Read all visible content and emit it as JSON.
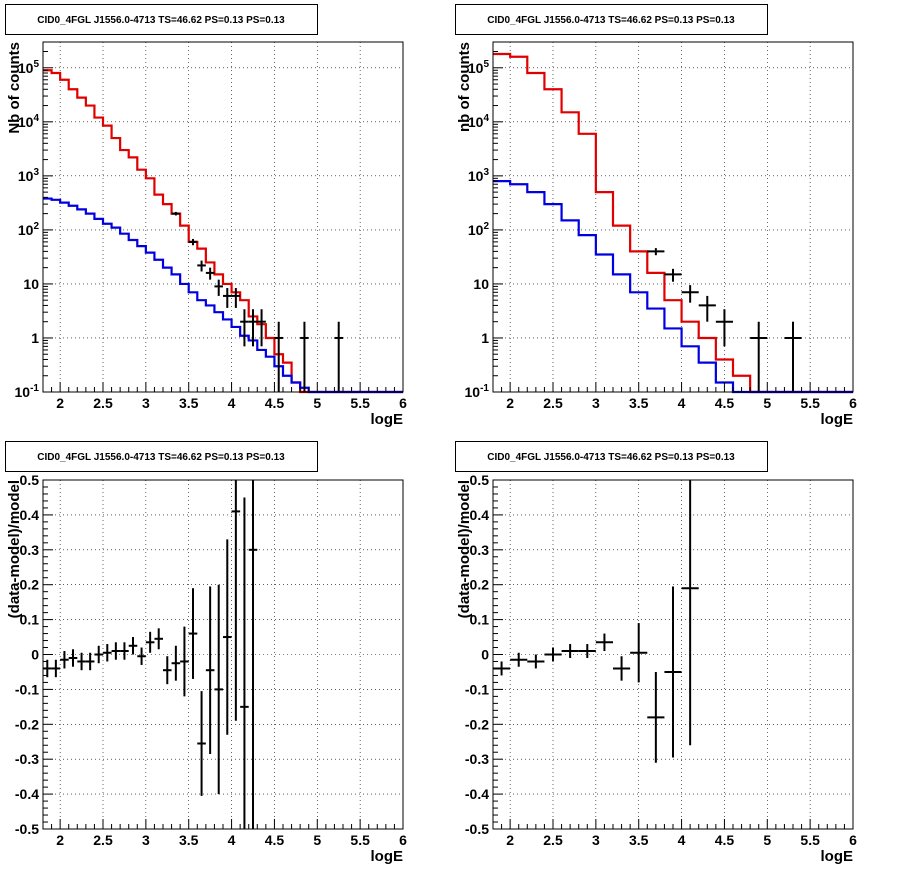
{
  "chart_data": [
    {
      "type": "line",
      "title": "CID0_4FGL J1556.0-4713 TS=46.62 PS=0.13 PS=0.13",
      "xlabel": "logE",
      "ylabel": "Nb of counts",
      "y_scale": "log",
      "xlim": [
        1.8,
        6.0
      ],
      "ylim": [
        0.1,
        300000
      ],
      "grid": true,
      "x_ticks": [
        "2",
        "2.5",
        "3",
        "3.5",
        "4",
        "4.5",
        "5",
        "5.5",
        "6"
      ],
      "y_ticks": [
        "10^-1",
        "1",
        "10",
        "10^2",
        "10^3",
        "10^4",
        "10^5"
      ],
      "bin_edges": [
        1.8,
        1.9,
        2.0,
        2.1,
        2.2,
        2.3,
        2.4,
        2.5,
        2.6,
        2.7,
        2.8,
        2.9,
        3.0,
        3.1,
        3.2,
        3.3,
        3.4,
        3.5,
        3.6,
        3.7,
        3.8,
        3.9,
        4.0,
        4.1,
        4.2,
        4.3,
        4.4,
        4.5,
        4.6,
        4.7,
        4.8,
        4.9,
        5.0,
        5.1,
        5.2,
        5.3,
        5.4,
        5.5,
        5.6,
        5.7,
        5.8,
        5.9,
        6.0
      ],
      "series": [
        {
          "color": "#e00000",
          "values": [
            90000,
            80000,
            60000,
            40000,
            28000,
            20000,
            12000,
            8500,
            5000,
            3000,
            2200,
            1300,
            900,
            450,
            300,
            200,
            120,
            60,
            45,
            25,
            15,
            10,
            7,
            5,
            2.5,
            1.8,
            1.0,
            0.5,
            0.35,
            0.15,
            0.1,
            0.1,
            0.1,
            0.1,
            0.1,
            0.1,
            0.1,
            0.1,
            0.1,
            0.1,
            0.1,
            0.1
          ]
        },
        {
          "color": "#0000e0",
          "values": [
            380,
            360,
            320,
            280,
            240,
            200,
            160,
            130,
            110,
            85,
            65,
            50,
            38,
            28,
            20,
            15,
            10,
            7,
            5,
            4,
            3,
            2.2,
            1.6,
            1.1,
            0.9,
            0.6,
            0.45,
            0.3,
            0.2,
            0.15,
            0.12,
            0.1,
            0.1,
            0.1,
            0.1,
            0.1,
            0.1,
            0.1,
            0.1,
            0.1,
            0.1,
            0.1
          ]
        }
      ],
      "points": [
        {
          "x": 3.35,
          "y": 200,
          "ylo": 185,
          "yhi": 215,
          "xerr": 0.05
        },
        {
          "x": 3.55,
          "y": 60,
          "ylo": 52,
          "yhi": 68,
          "xerr": 0.05
        },
        {
          "x": 3.65,
          "y": 22,
          "ylo": 17,
          "yhi": 27,
          "xerr": 0.05
        },
        {
          "x": 3.75,
          "y": 16,
          "ylo": 12,
          "yhi": 20,
          "xerr": 0.05
        },
        {
          "x": 3.85,
          "y": 9,
          "ylo": 6,
          "yhi": 12,
          "xerr": 0.05
        },
        {
          "x": 3.95,
          "y": 6,
          "ylo": 3.6,
          "yhi": 8.4,
          "xerr": 0.05
        },
        {
          "x": 4.05,
          "y": 6,
          "ylo": 3.6,
          "yhi": 8.4,
          "xerr": 0.05
        },
        {
          "x": 4.15,
          "y": 2,
          "ylo": 0.7,
          "yhi": 3.4,
          "xerr": 0.05
        },
        {
          "x": 4.25,
          "y": 2,
          "ylo": 0.7,
          "yhi": 3.4,
          "xerr": 0.05
        },
        {
          "x": 4.35,
          "y": 2,
          "ylo": 0.7,
          "yhi": 3.4,
          "xerr": 0.05
        },
        {
          "x": 4.55,
          "y": 1,
          "ylo": 0.1,
          "yhi": 2.0,
          "xerr": 0.05
        },
        {
          "x": 4.85,
          "y": 1,
          "ylo": 0.1,
          "yhi": 2.0,
          "xerr": 0.05
        },
        {
          "x": 5.25,
          "y": 1,
          "ylo": 0.1,
          "yhi": 2.0,
          "xerr": 0.05
        }
      ]
    },
    {
      "type": "line",
      "title": "CID0_4FGL J1556.0-4713 TS=46.62 PS=0.13 PS=0.13",
      "xlabel": "logE",
      "ylabel": "nb of counts",
      "y_scale": "log",
      "xlim": [
        1.8,
        6.0
      ],
      "ylim": [
        0.1,
        300000
      ],
      "grid": true,
      "x_ticks": [
        "2",
        "2.5",
        "3",
        "3.5",
        "4",
        "4.5",
        "5",
        "5.5",
        "6"
      ],
      "y_ticks": [
        "10^-1",
        "1",
        "10",
        "10^2",
        "10^3",
        "10^4",
        "10^5"
      ],
      "bin_edges": [
        1.8,
        2.0,
        2.2,
        2.4,
        2.6,
        2.8,
        3.0,
        3.2,
        3.4,
        3.6,
        3.8,
        4.0,
        4.2,
        4.4,
        4.6,
        4.8,
        5.0,
        5.2,
        5.4,
        5.6,
        5.8,
        6.0
      ],
      "series": [
        {
          "color": "#e00000",
          "values": [
            180000,
            160000,
            80000,
            40000,
            15000,
            6000,
            500,
            120,
            40,
            16,
            5,
            2,
            1,
            0.4,
            0.2,
            0.1,
            0.1,
            0.1,
            0.1,
            0.1,
            0.1
          ]
        },
        {
          "color": "#0000e0",
          "values": [
            800,
            700,
            500,
            300,
            150,
            80,
            35,
            15,
            7,
            3.5,
            1.5,
            0.7,
            0.35,
            0.15,
            0.1,
            0.1,
            0.1,
            0.1,
            0.1,
            0.1,
            0.1
          ]
        }
      ],
      "points": [
        {
          "x": 3.7,
          "y": 40,
          "ylo": 34,
          "yhi": 46,
          "xerr": 0.1
        },
        {
          "x": 3.9,
          "y": 15,
          "ylo": 11,
          "yhi": 19,
          "xerr": 0.1
        },
        {
          "x": 4.1,
          "y": 7,
          "ylo": 4.5,
          "yhi": 9.5,
          "xerr": 0.1
        },
        {
          "x": 4.3,
          "y": 4,
          "ylo": 2,
          "yhi": 6,
          "xerr": 0.1
        },
        {
          "x": 4.5,
          "y": 2,
          "ylo": 0.7,
          "yhi": 3.4,
          "xerr": 0.1
        },
        {
          "x": 4.9,
          "y": 1,
          "ylo": 0.1,
          "yhi": 2.0,
          "xerr": 0.1
        },
        {
          "x": 5.3,
          "y": 1,
          "ylo": 0.1,
          "yhi": 2.0,
          "xerr": 0.1
        }
      ]
    },
    {
      "type": "scatter",
      "title": "CID0_4FGL J1556.0-4713 TS=46.62 PS=0.13 PS=0.13",
      "xlabel": "logE",
      "ylabel": "(data-model)/model",
      "xlim": [
        1.8,
        6.0
      ],
      "ylim": [
        -0.5,
        0.5
      ],
      "grid": true,
      "x_ticks": [
        "2",
        "2.5",
        "3",
        "3.5",
        "4",
        "4.5",
        "5",
        "5.5",
        "6"
      ],
      "y_ticks": [
        "-0.5",
        "-0.4",
        "-0.3",
        "-0.2",
        "-0.1",
        "0",
        "0.1",
        "0.2",
        "0.3",
        "0.4",
        "0.5"
      ],
      "points": [
        {
          "x": 1.85,
          "y": -0.04,
          "yerr": 0.025,
          "xerr": 0.05
        },
        {
          "x": 1.95,
          "y": -0.04,
          "yerr": 0.025,
          "xerr": 0.05
        },
        {
          "x": 2.05,
          "y": -0.015,
          "yerr": 0.025,
          "xerr": 0.05
        },
        {
          "x": 2.15,
          "y": -0.01,
          "yerr": 0.025,
          "xerr": 0.05
        },
        {
          "x": 2.25,
          "y": -0.02,
          "yerr": 0.025,
          "xerr": 0.05
        },
        {
          "x": 2.35,
          "y": -0.02,
          "yerr": 0.025,
          "xerr": 0.05
        },
        {
          "x": 2.45,
          "y": 0.0,
          "yerr": 0.025,
          "xerr": 0.05
        },
        {
          "x": 2.55,
          "y": 0.005,
          "yerr": 0.025,
          "xerr": 0.05
        },
        {
          "x": 2.65,
          "y": 0.01,
          "yerr": 0.025,
          "xerr": 0.05
        },
        {
          "x": 2.75,
          "y": 0.01,
          "yerr": 0.025,
          "xerr": 0.05
        },
        {
          "x": 2.85,
          "y": 0.025,
          "yerr": 0.025,
          "xerr": 0.05
        },
        {
          "x": 2.95,
          "y": -0.005,
          "yerr": 0.025,
          "xerr": 0.05
        },
        {
          "x": 3.05,
          "y": 0.035,
          "yerr": 0.03,
          "xerr": 0.05
        },
        {
          "x": 3.15,
          "y": 0.045,
          "yerr": 0.03,
          "xerr": 0.05
        },
        {
          "x": 3.25,
          "y": -0.045,
          "yerr": 0.04,
          "xerr": 0.05
        },
        {
          "x": 3.35,
          "y": -0.025,
          "yerr": 0.05,
          "xerr": 0.05
        },
        {
          "x": 3.45,
          "y": -0.02,
          "yerr": 0.1,
          "xerr": 0.05
        },
        {
          "x": 3.55,
          "y": 0.06,
          "yerr": 0.13,
          "xerr": 0.05
        },
        {
          "x": 3.65,
          "y": -0.255,
          "yerr": 0.15,
          "xerr": 0.05
        },
        {
          "x": 3.75,
          "y": -0.045,
          "yerr": 0.24,
          "xerr": 0.05
        },
        {
          "x": 3.85,
          "y": -0.1,
          "yerr": 0.3,
          "xerr": 0.05
        },
        {
          "x": 3.95,
          "y": 0.05,
          "yerr": 0.28,
          "xerr": 0.05
        },
        {
          "x": 4.05,
          "y": 0.41,
          "yerr": 0.6,
          "xerr": 0.05
        },
        {
          "x": 4.15,
          "y": -0.15,
          "yerr": 0.6,
          "xerr": 0.05
        },
        {
          "x": 4.25,
          "y": 0.3,
          "yerr": 0.8,
          "xerr": 0.05
        }
      ]
    },
    {
      "type": "scatter",
      "title": "CID0_4FGL J1556.0-4713 TS=46.62 PS=0.13 PS=0.13",
      "xlabel": "logE",
      "ylabel": "(data-model)/model",
      "xlim": [
        1.8,
        6.0
      ],
      "ylim": [
        -0.5,
        0.5
      ],
      "grid": true,
      "x_ticks": [
        "2",
        "2.5",
        "3",
        "3.5",
        "4",
        "4.5",
        "5",
        "5.5",
        "6"
      ],
      "y_ticks": [
        "-0.5",
        "-0.4",
        "-0.3",
        "-0.2",
        "-0.1",
        "0",
        "0.1",
        "0.2",
        "0.3",
        "0.4",
        "0.5"
      ],
      "points": [
        {
          "x": 1.9,
          "y": -0.04,
          "yerr": 0.02,
          "xerr": 0.1
        },
        {
          "x": 2.1,
          "y": -0.015,
          "yerr": 0.02,
          "xerr": 0.1
        },
        {
          "x": 2.3,
          "y": -0.02,
          "yerr": 0.02,
          "xerr": 0.1
        },
        {
          "x": 2.5,
          "y": 0.0,
          "yerr": 0.02,
          "xerr": 0.1
        },
        {
          "x": 2.7,
          "y": 0.01,
          "yerr": 0.02,
          "xerr": 0.1
        },
        {
          "x": 2.9,
          "y": 0.01,
          "yerr": 0.02,
          "xerr": 0.1
        },
        {
          "x": 3.1,
          "y": 0.035,
          "yerr": 0.025,
          "xerr": 0.1
        },
        {
          "x": 3.3,
          "y": -0.04,
          "yerr": 0.035,
          "xerr": 0.1
        },
        {
          "x": 3.5,
          "y": 0.005,
          "yerr": 0.085,
          "xerr": 0.1
        },
        {
          "x": 3.7,
          "y": -0.18,
          "yerr": 0.13,
          "xerr": 0.1
        },
        {
          "x": 3.9,
          "y": -0.05,
          "yerr": 0.245,
          "xerr": 0.1
        },
        {
          "x": 4.1,
          "y": 0.19,
          "yerr": 0.45,
          "xerr": 0.1
        }
      ]
    }
  ]
}
